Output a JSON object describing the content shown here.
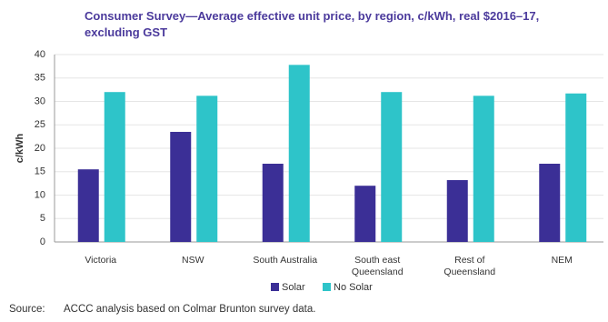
{
  "chart_data": {
    "type": "grouped_bar",
    "title": "Consumer Survey—Average effective unit price, by region, c/kWh, real $2016–17, excluding GST",
    "y_label": "c/kWh",
    "categories": [
      "Victoria",
      "NSW",
      "South Australia",
      "South east\nQueensland",
      "Rest of\nQueensland",
      "NEM"
    ],
    "series": [
      {
        "name": "Solar",
        "color": "#3b2f96",
        "values": [
          15.5,
          23.5,
          16.7,
          12.0,
          13.2,
          16.7
        ]
      },
      {
        "name": "No Solar",
        "color": "#2ec4c9",
        "values": [
          32.0,
          31.2,
          37.8,
          32.0,
          31.2,
          31.7
        ]
      }
    ],
    "ylim": [
      0,
      40
    ],
    "yticks": [
      0,
      5,
      10,
      15,
      20,
      25,
      30,
      35,
      40
    ],
    "grid": true
  },
  "source": {
    "label": "Source:",
    "text": "ACCC analysis based on Colmar Brunton survey data."
  }
}
